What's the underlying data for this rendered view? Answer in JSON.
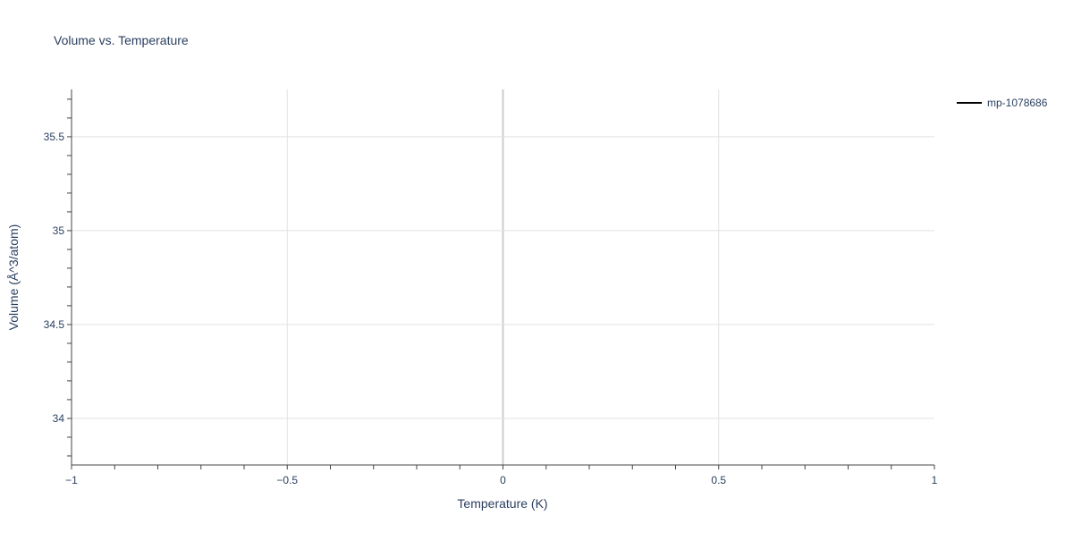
{
  "chart_data": {
    "type": "line",
    "title": "Volume vs. Temperature",
    "xlabel": "Temperature (K)",
    "ylabel": "Volume (Å^3/atom)",
    "xlim": [
      -1,
      1
    ],
    "ylim": [
      33.752,
      35.752
    ],
    "x_ticks": [
      -1,
      -0.5,
      0,
      0.5,
      1
    ],
    "x_tick_labels": [
      "−1",
      "−0.5",
      "0",
      "0.5",
      "1"
    ],
    "y_ticks": [
      34,
      34.5,
      35,
      35.5
    ],
    "y_tick_labels": [
      "34",
      "34.5",
      "35",
      "35.5"
    ],
    "grid": true,
    "legend_placement": "top-right",
    "series": [
      {
        "name": "mp-1078686",
        "color": "#000000",
        "x": [],
        "y": []
      }
    ]
  }
}
